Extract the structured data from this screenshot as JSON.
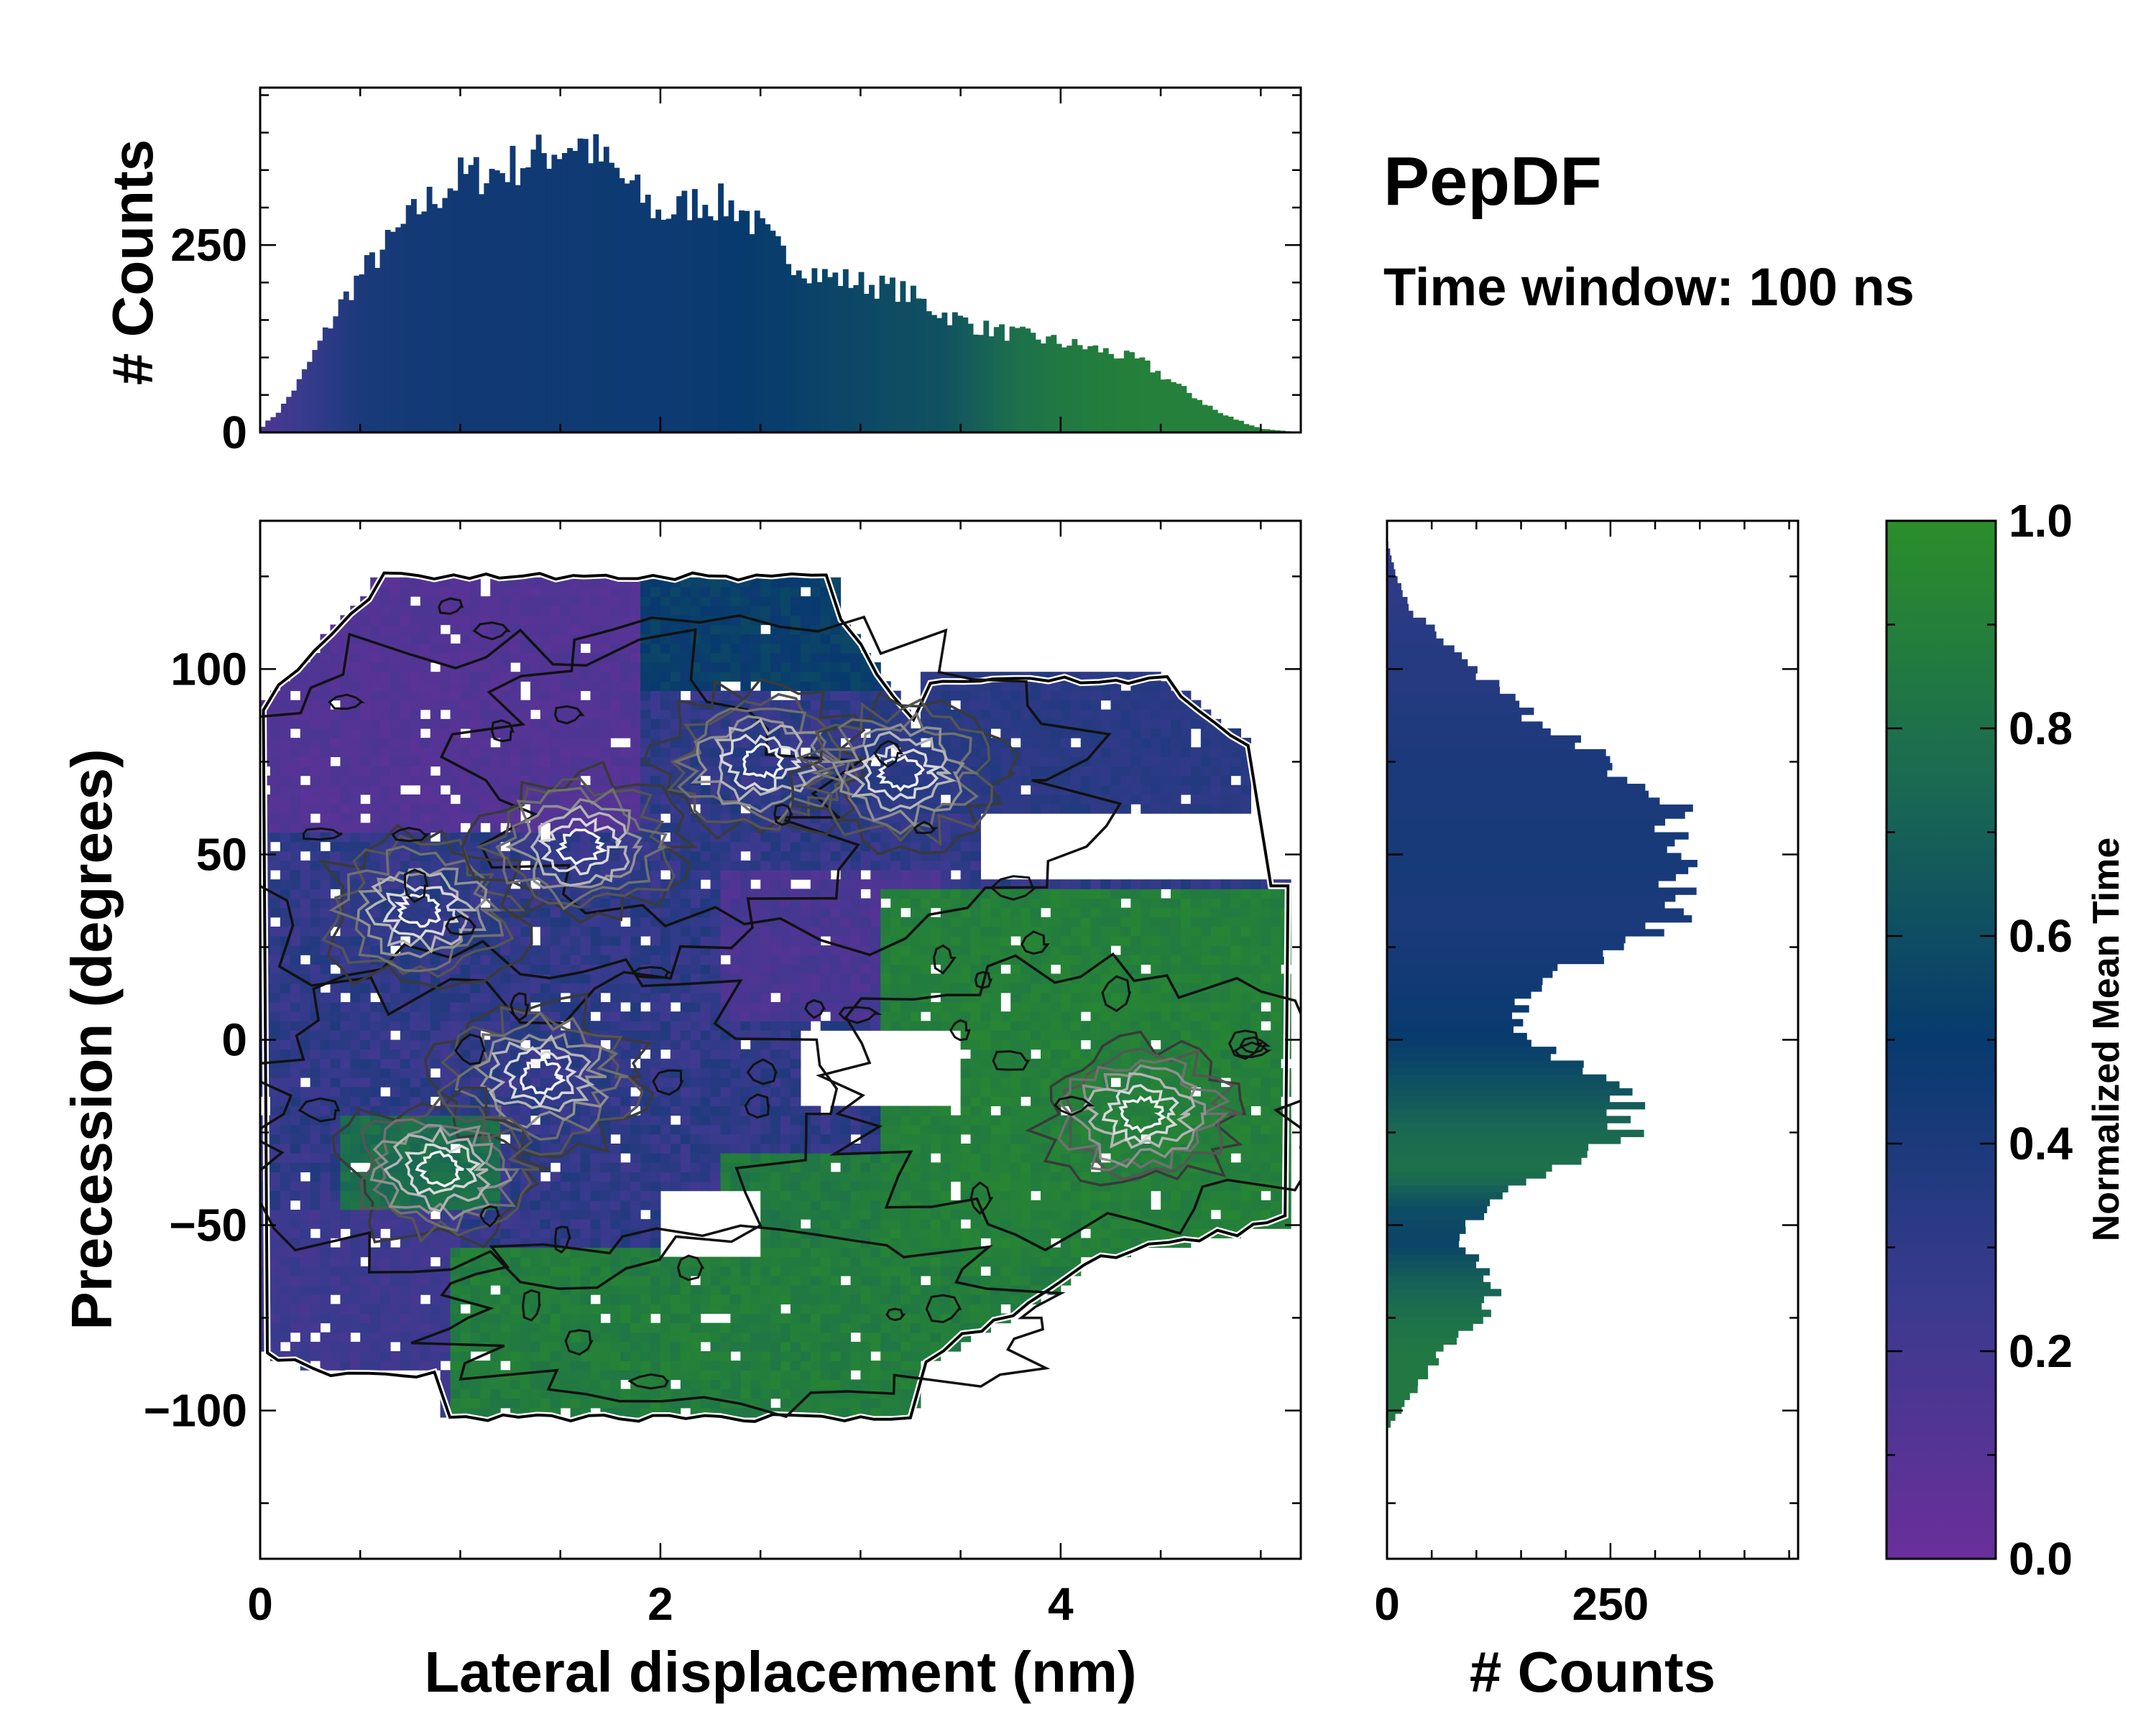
{
  "chart_data": [
    {
      "panel": "top-marginal",
      "type": "bar",
      "title": "",
      "xlabel": "",
      "ylabel": "# Counts",
      "xlim": [
        0,
        5.2
      ],
      "ylim": [
        0,
        460
      ],
      "yticks": [
        0,
        250
      ],
      "ytick_labels": [
        "0",
        "250"
      ],
      "color_by": "normalized mean time",
      "profile_x": [
        0.0,
        0.1,
        0.2,
        0.3,
        0.4,
        0.5,
        0.6,
        0.8,
        1.0,
        1.2,
        1.4,
        1.6,
        1.8,
        2.0,
        2.2,
        2.4,
        2.6,
        2.8,
        3.0,
        3.2,
        3.4,
        3.6,
        3.8,
        4.0,
        4.2,
        4.4,
        4.6,
        4.8,
        5.0,
        5.2
      ],
      "profile_counts": [
        5,
        30,
        70,
        120,
        170,
        210,
        240,
        300,
        340,
        350,
        370,
        390,
        340,
        290,
        310,
        300,
        240,
        210,
        200,
        190,
        160,
        140,
        130,
        120,
        110,
        95,
        60,
        25,
        5,
        0
      ],
      "profile_color": [
        0.15,
        0.2,
        0.25,
        0.3,
        0.35,
        0.4,
        0.42,
        0.44,
        0.45,
        0.45,
        0.46,
        0.46,
        0.47,
        0.47,
        0.48,
        0.5,
        0.52,
        0.55,
        0.57,
        0.6,
        0.62,
        0.7,
        0.8,
        0.85,
        0.88,
        0.9,
        0.9,
        0.9,
        0.9,
        0.9
      ]
    },
    {
      "panel": "main",
      "type": "heatmap",
      "title": "",
      "xlabel": "Lateral displacement (nm)",
      "ylabel": "Precession (degrees)",
      "xlim": [
        0,
        5.2
      ],
      "ylim": [
        -140,
        140
      ],
      "xticks": [
        0,
        2,
        4
      ],
      "xtick_labels": [
        "0",
        "2",
        "4"
      ],
      "yticks": [
        100,
        50,
        0,
        -50,
        -100
      ],
      "ytick_labels": [
        "100",
        "50",
        "0",
        "−50",
        "−100"
      ],
      "value": "normalized mean time",
      "overlay": "density contours (black to white with increasing density)",
      "regions": [
        {
          "name": "upper-left",
          "x": [
            0.1,
            2.0
          ],
          "y": [
            60,
            130
          ],
          "mean_time": 0.1
        },
        {
          "name": "upper-middle",
          "x": [
            1.0,
            3.5
          ],
          "y": [
            30,
            130
          ],
          "mean_time": 0.4
        },
        {
          "name": "upper-right",
          "x": [
            3.0,
            5.0
          ],
          "y": [
            60,
            100
          ],
          "mean_time": 0.35
        },
        {
          "name": "center",
          "x": [
            0.0,
            3.2
          ],
          "y": [
            -70,
            60
          ],
          "mean_time": 0.3
        },
        {
          "name": "right-lobe",
          "x": [
            3.1,
            5.2
          ],
          "y": [
            -55,
            40
          ],
          "mean_time": 0.92
        },
        {
          "name": "lower",
          "x": [
            1.0,
            4.2
          ],
          "y": [
            -105,
            -40
          ],
          "mean_time": 0.9
        }
      ],
      "density_peaks": [
        {
          "x": 0.8,
          "y": 35
        },
        {
          "x": 1.6,
          "y": 52
        },
        {
          "x": 2.5,
          "y": 75
        },
        {
          "x": 3.2,
          "y": 72
        },
        {
          "x": 1.4,
          "y": -10
        },
        {
          "x": 0.9,
          "y": -35
        },
        {
          "x": 4.4,
          "y": -20
        }
      ]
    },
    {
      "panel": "right-marginal",
      "type": "bar",
      "orientation": "horizontal",
      "title": "",
      "xlabel": "# Counts",
      "ylabel": "",
      "xlim": [
        0,
        460
      ],
      "ylim": [
        -140,
        140
      ],
      "xticks": [
        0,
        250
      ],
      "xtick_labels": [
        "0",
        "250"
      ],
      "color_by": "normalized mean time",
      "profile_y": [
        135,
        125,
        115,
        105,
        95,
        85,
        75,
        65,
        55,
        45,
        35,
        25,
        15,
        5,
        -5,
        -15,
        -25,
        -35,
        -45,
        -55,
        -65,
        -75,
        -85,
        -95,
        -105
      ],
      "profile_counts": [
        0,
        10,
        30,
        80,
        120,
        170,
        250,
        310,
        330,
        330,
        340,
        260,
        160,
        140,
        200,
        260,
        270,
        190,
        110,
        80,
        120,
        110,
        60,
        30,
        0
      ],
      "profile_color": [
        0.3,
        0.3,
        0.32,
        0.35,
        0.35,
        0.38,
        0.4,
        0.4,
        0.42,
        0.42,
        0.4,
        0.42,
        0.45,
        0.48,
        0.55,
        0.65,
        0.75,
        0.8,
        0.6,
        0.55,
        0.7,
        0.8,
        0.85,
        0.85,
        0.85
      ]
    },
    {
      "panel": "colorbar",
      "type": "colorbar",
      "label": "Normalized Mean Time",
      "range": [
        0.0,
        1.0
      ],
      "ticks": [
        0.0,
        0.2,
        0.4,
        0.6,
        0.8,
        1.0
      ],
      "tick_labels": [
        "0.0",
        "0.2",
        "0.4",
        "0.6",
        "0.8",
        "1.0"
      ],
      "colormap": [
        {
          "stop": 0.0,
          "color": "#6a2f9a"
        },
        {
          "stop": 0.25,
          "color": "#3a3a8e"
        },
        {
          "stop": 0.5,
          "color": "#073a6e"
        },
        {
          "stop": 0.75,
          "color": "#1a6a52"
        },
        {
          "stop": 1.0,
          "color": "#2b8e2a"
        }
      ]
    }
  ],
  "figure": {
    "title": "PepDF",
    "subtitle": "Time window: 100 ns"
  },
  "colors": {
    "axis": "#000000",
    "background": "#ffffff"
  }
}
